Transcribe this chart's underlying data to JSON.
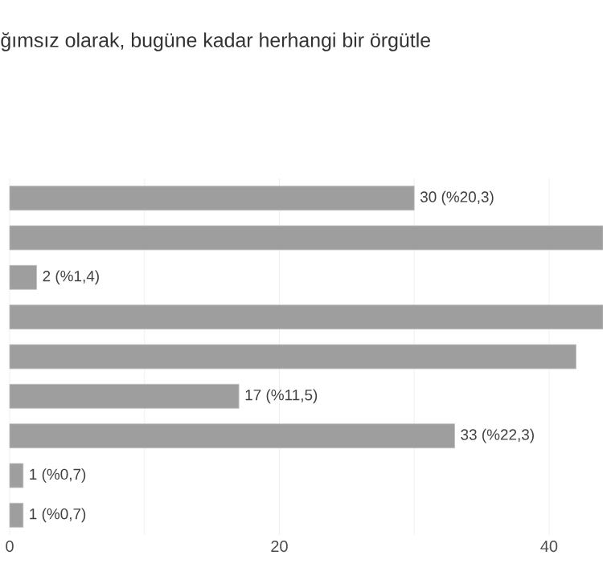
{
  "chart_data": {
    "type": "bar",
    "orientation": "horizontal",
    "title": "ğımsız olarak, bugüne kadar herhangi bir örgütle",
    "categories": [
      null,
      null,
      null,
      null,
      null,
      null,
      null,
      null,
      null
    ],
    "values": [
      30,
      44,
      2,
      44,
      42,
      17,
      33,
      1,
      1
    ],
    "value_labels": [
      "30 (%20,3)",
      null,
      "2 (%1,4)",
      null,
      null,
      "17 (%11,5)",
      "33 (%22,3)",
      "1 (%0,7)",
      "1 (%0,7)"
    ],
    "color": "#9e9e9e",
    "xlim": [
      0,
      44
    ],
    "xticks": [
      0,
      {
        "value": 10,
        "label": null
      },
      20,
      {
        "value": 30,
        "label": null
      },
      40
    ],
    "grid": "x"
  }
}
